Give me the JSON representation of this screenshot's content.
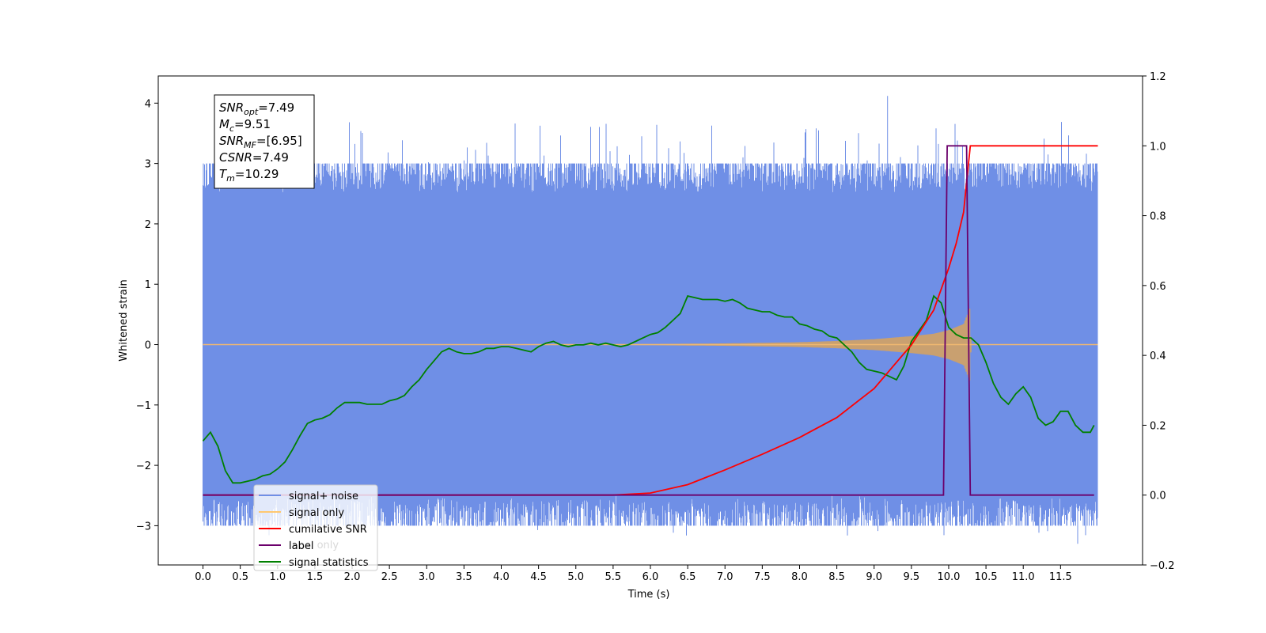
{
  "chart_data": {
    "type": "line",
    "title": "",
    "xlabel": "Time (s)",
    "ylabel": "Whitened strain",
    "ylabel_right": "",
    "xlim": [
      -0.6,
      12.6
    ],
    "ylim": [
      -3.65,
      4.45
    ],
    "ylim_right": [
      -0.2,
      1.2
    ],
    "x_ticks": [
      "0.0",
      "0.5",
      "1.0",
      "1.5",
      "2.0",
      "2.5",
      "3.0",
      "3.5",
      "4.0",
      "4.5",
      "5.0",
      "5.5",
      "6.0",
      "6.5",
      "7.0",
      "7.5",
      "8.0",
      "8.5",
      "9.0",
      "9.5",
      "10.0",
      "10.5",
      "11.0",
      "11.5"
    ],
    "y_ticks": [
      "−3",
      "−2",
      "−1",
      "0",
      "1",
      "2",
      "3",
      "4"
    ],
    "y_ticks_right": [
      "−0.2",
      "0.0",
      "0.2",
      "0.4",
      "0.6",
      "0.8",
      "1.0",
      "1.2"
    ],
    "grid": false,
    "legend_position": "lower-left",
    "legend": [
      {
        "label": "signal+ noise",
        "color": "#6f8fe6"
      },
      {
        "label": "signal only",
        "color": "#ffc870"
      },
      {
        "label": "cumilative SNR",
        "color": "#ff0000"
      },
      {
        "label": "label",
        "color": "#6b006b"
      },
      {
        "label": "signal statistics",
        "color": "#008000"
      }
    ],
    "legend_hidden_label": "label only",
    "annotation": [
      {
        "var": "SNR",
        "sub": "opt",
        "text": "=7.49"
      },
      {
        "var": "M",
        "sub": "c",
        "text": "=9.51"
      },
      {
        "var": "SNR",
        "sub": "MF",
        "text": "=[6.95]"
      },
      {
        "var": "CSNR",
        "sub": "",
        "text": "=7.49"
      },
      {
        "var": "T",
        "sub": "m",
        "text": "=10.29"
      }
    ],
    "series": [
      {
        "name": "signal+ noise",
        "axis": "left",
        "color": "#6f8fe6",
        "x_range": [
          0.0,
          12.0
        ],
        "description_of_envelope": [
          -2.5,
          2.5
        ],
        "peak_max": 4.12,
        "peak_min": -3.3
      },
      {
        "name": "signal only",
        "axis": "left",
        "color": "#ffc870",
        "x": [
          0.0,
          5.0,
          6.0,
          7.0,
          8.0,
          8.5,
          9.0,
          9.5,
          9.8,
          10.0,
          10.2,
          10.29,
          10.3,
          12.0
        ],
        "amplitude": [
          0.0,
          0.0,
          0.01,
          0.02,
          0.04,
          0.06,
          0.09,
          0.14,
          0.18,
          0.24,
          0.34,
          0.62,
          0.0,
          0.0
        ]
      },
      {
        "name": "cumilative SNR",
        "axis": "right",
        "color": "#ff0000",
        "x": [
          0.0,
          5.5,
          6.0,
          6.5,
          7.0,
          7.5,
          8.0,
          8.5,
          9.0,
          9.5,
          9.8,
          10.0,
          10.1,
          10.2,
          10.29,
          10.3,
          12.0
        ],
        "y": [
          0.0,
          0.0,
          0.006,
          0.03,
          0.072,
          0.117,
          0.165,
          0.222,
          0.305,
          0.43,
          0.53,
          0.65,
          0.72,
          0.81,
          1.0,
          1.0,
          1.0
        ]
      },
      {
        "name": "label",
        "axis": "right",
        "color": "#6b006b",
        "x": [
          0.0,
          9.93,
          9.98,
          10.24,
          10.29,
          11.95
        ],
        "y": [
          0.0,
          0.0,
          1.0,
          1.0,
          0.0,
          0.0
        ]
      },
      {
        "name": "signal statistics",
        "axis": "right",
        "color": "#008000",
        "x": [
          0.0,
          0.1,
          0.2,
          0.3,
          0.4,
          0.5,
          0.6,
          0.7,
          0.8,
          0.9,
          1.0,
          1.1,
          1.2,
          1.3,
          1.4,
          1.5,
          1.6,
          1.7,
          1.8,
          1.9,
          2.0,
          2.1,
          2.2,
          2.3,
          2.4,
          2.5,
          2.6,
          2.7,
          2.8,
          2.9,
          3.0,
          3.1,
          3.2,
          3.3,
          3.4,
          3.5,
          3.6,
          3.7,
          3.8,
          3.9,
          4.0,
          4.1,
          4.2,
          4.3,
          4.4,
          4.5,
          4.6,
          4.7,
          4.8,
          4.9,
          5.0,
          5.1,
          5.2,
          5.3,
          5.4,
          5.5,
          5.6,
          5.7,
          5.8,
          5.9,
          6.0,
          6.1,
          6.2,
          6.3,
          6.4,
          6.5,
          6.6,
          6.7,
          6.8,
          6.9,
          7.0,
          7.1,
          7.2,
          7.3,
          7.4,
          7.5,
          7.6,
          7.7,
          7.8,
          7.9,
          8.0,
          8.1,
          8.2,
          8.3,
          8.4,
          8.5,
          8.6,
          8.7,
          8.8,
          8.9,
          9.0,
          9.1,
          9.2,
          9.3,
          9.4,
          9.5,
          9.6,
          9.7,
          9.8,
          9.9,
          10.0,
          10.1,
          10.2,
          10.3,
          10.4,
          10.5,
          10.6,
          10.7,
          10.8,
          10.9,
          11.0,
          11.1,
          11.2,
          11.3,
          11.4,
          11.5,
          11.6,
          11.7,
          11.8,
          11.9,
          11.95
        ],
        "y": [
          0.155,
          0.18,
          0.14,
          0.07,
          0.035,
          0.035,
          0.04,
          0.045,
          0.055,
          0.06,
          0.075,
          0.095,
          0.13,
          0.17,
          0.205,
          0.215,
          0.22,
          0.23,
          0.25,
          0.265,
          0.265,
          0.265,
          0.26,
          0.26,
          0.26,
          0.27,
          0.275,
          0.285,
          0.31,
          0.33,
          0.36,
          0.385,
          0.41,
          0.42,
          0.41,
          0.405,
          0.405,
          0.41,
          0.42,
          0.42,
          0.425,
          0.425,
          0.42,
          0.415,
          0.41,
          0.425,
          0.435,
          0.44,
          0.43,
          0.425,
          0.43,
          0.43,
          0.435,
          0.43,
          0.435,
          0.43,
          0.425,
          0.43,
          0.44,
          0.45,
          0.46,
          0.465,
          0.48,
          0.5,
          0.52,
          0.57,
          0.565,
          0.56,
          0.56,
          0.56,
          0.555,
          0.56,
          0.55,
          0.535,
          0.53,
          0.525,
          0.525,
          0.515,
          0.51,
          0.51,
          0.49,
          0.485,
          0.475,
          0.47,
          0.455,
          0.45,
          0.43,
          0.41,
          0.38,
          0.36,
          0.355,
          0.35,
          0.34,
          0.33,
          0.37,
          0.44,
          0.47,
          0.5,
          0.57,
          0.55,
          0.48,
          0.46,
          0.45,
          0.45,
          0.43,
          0.38,
          0.32,
          0.28,
          0.26,
          0.29,
          0.31,
          0.28,
          0.22,
          0.2,
          0.21,
          0.24,
          0.24,
          0.2,
          0.18,
          0.18,
          0.2
        ]
      }
    ]
  }
}
